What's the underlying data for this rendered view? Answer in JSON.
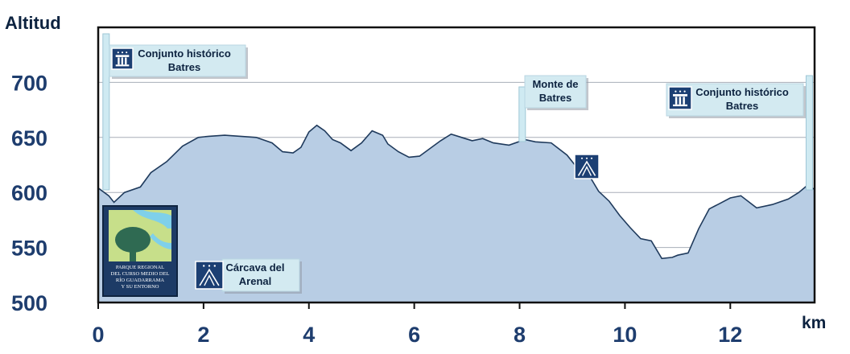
{
  "chart_data": {
    "type": "area",
    "ylabel": "Altitud",
    "xlabel": "km",
    "xlim": [
      0,
      13.6
    ],
    "ylim": [
      500,
      750
    ],
    "xticks": [
      0,
      2,
      4,
      6,
      8,
      10,
      12
    ],
    "yticks": [
      500,
      550,
      600,
      650,
      700
    ],
    "grid": "horizontal",
    "colors": {
      "fill": "#b8cde4",
      "line": "#1f3a5c",
      "frame": "#111111",
      "tick_labels": "#1e3d6e",
      "post": "#cfeaf2",
      "icon": "#1c3f73"
    },
    "series": [
      {
        "x": [
          0,
          0.2,
          0.3,
          0.5,
          0.8,
          1.0,
          1.3,
          1.6,
          1.9,
          2.1,
          2.4,
          2.7,
          3.0,
          3.3,
          3.5,
          3.7,
          3.85,
          4.0,
          4.15,
          4.3,
          4.45,
          4.6,
          4.8,
          5.0,
          5.2,
          5.4,
          5.5,
          5.7,
          5.9,
          6.1,
          6.3,
          6.5,
          6.7,
          6.9,
          7.1,
          7.3,
          7.5,
          7.8,
          8.1,
          8.3,
          8.6,
          8.9,
          9.1,
          9.3,
          9.5,
          9.7,
          9.9,
          10.1,
          10.3,
          10.5,
          10.7,
          10.9,
          11.0,
          11.2,
          11.4,
          11.6,
          11.8,
          12.0,
          12.2,
          12.5,
          12.8,
          13.1,
          13.3,
          13.45,
          13.6
        ],
        "y": [
          604,
          597,
          591,
          600,
          605,
          618,
          628,
          642,
          650,
          651,
          652,
          651,
          650,
          645,
          637,
          636,
          641,
          655,
          661,
          656,
          648,
          645,
          638,
          645,
          656,
          652,
          644,
          637,
          632,
          633,
          640,
          647,
          653,
          650,
          647,
          649,
          645,
          643,
          648,
          646,
          645,
          634,
          622,
          617,
          601,
          592,
          579,
          568,
          558,
          556,
          540,
          541,
          543,
          545,
          567,
          585,
          590,
          595,
          597,
          586,
          589,
          594,
          600,
          606,
          603
        ]
      }
    ]
  },
  "annotations": {
    "start_label": "Conjunto histórico\nBatres",
    "monte_label": "Monte de\nBatres",
    "end_label": "Conjunto histórico\nBatres",
    "carcava_label": "Cárcava del\nArenal",
    "logo_text": [
      "PARQUE REGIONAL",
      "DEL CURSO MEDIO DEL",
      "RÍO GUADARRAMA",
      "Y SU ENTORNO"
    ]
  }
}
